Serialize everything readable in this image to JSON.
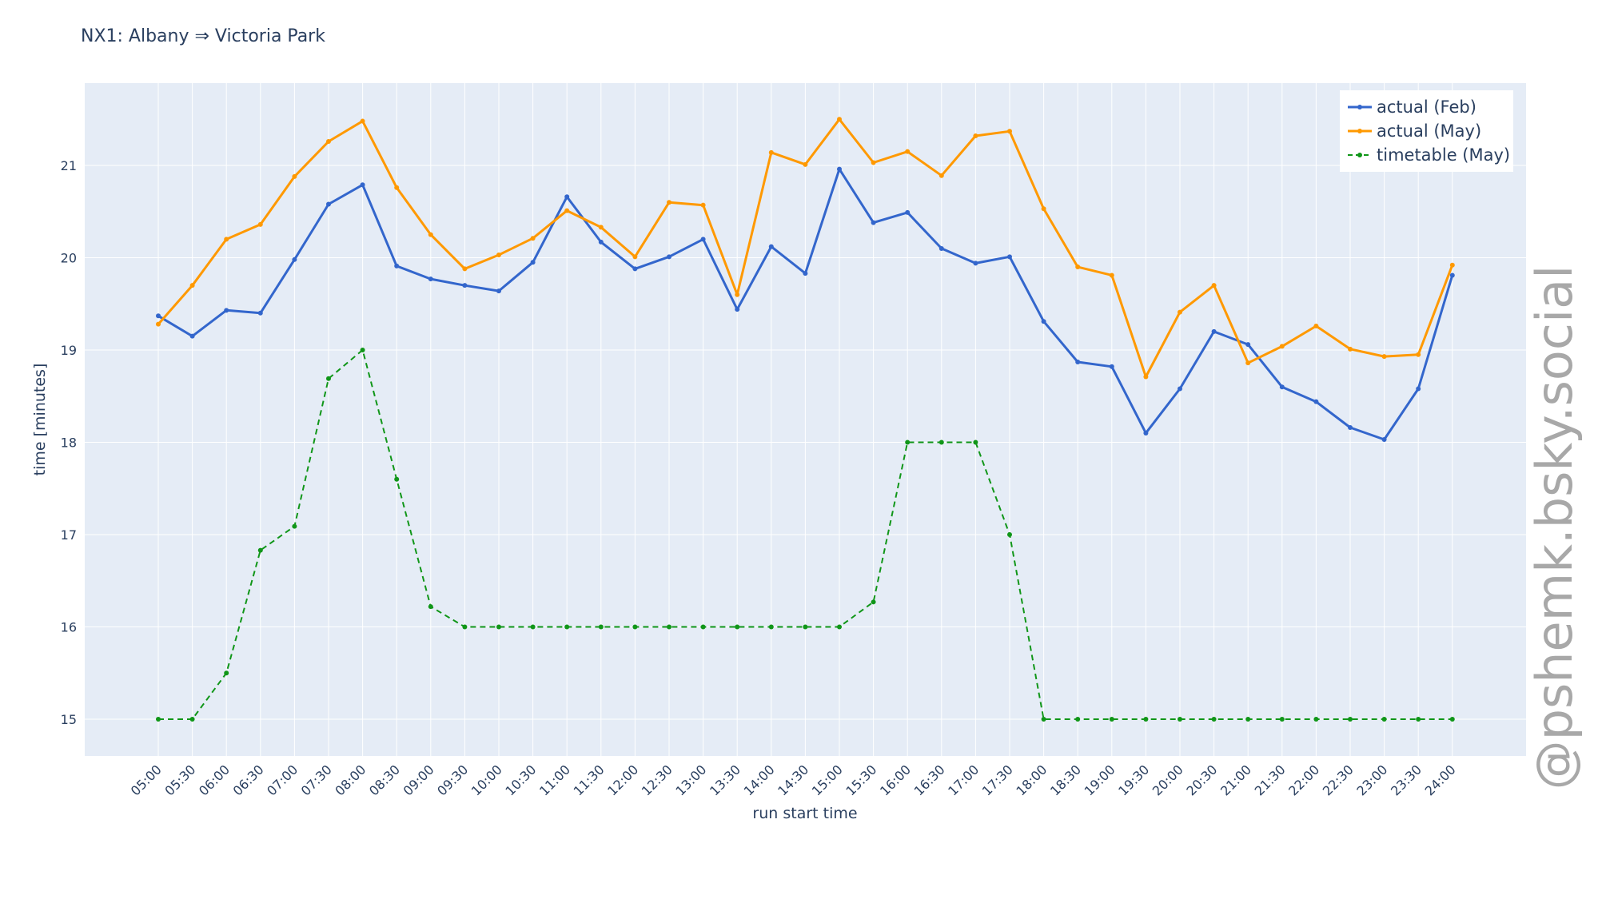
{
  "chart_data": {
    "type": "line",
    "title": "NX1: Albany ⇒ Victoria Park",
    "xlabel": "run start time",
    "ylabel": "time [minutes]",
    "ylim": [
      14.6,
      21.9
    ],
    "yticks": [
      15,
      16,
      17,
      18,
      19,
      20,
      21
    ],
    "grid": true,
    "legend_position": "top-right",
    "x": [
      "05:00",
      "05:30",
      "06:00",
      "06:30",
      "07:00",
      "07:30",
      "08:00",
      "08:30",
      "09:00",
      "09:30",
      "10:00",
      "10:30",
      "11:00",
      "11:30",
      "12:00",
      "12:30",
      "13:00",
      "13:30",
      "14:00",
      "14:30",
      "15:00",
      "15:30",
      "16:00",
      "16:30",
      "17:00",
      "17:30",
      "18:00",
      "18:30",
      "19:00",
      "19:30",
      "20:00",
      "20:30",
      "21:00",
      "21:30",
      "22:00",
      "22:30",
      "23:00",
      "23:30",
      "24:00"
    ],
    "series": [
      {
        "name": "actual (Feb)",
        "color": "#3366cc",
        "dash": "solid",
        "values": [
          19.37,
          19.15,
          19.43,
          19.4,
          19.98,
          20.58,
          20.79,
          19.91,
          19.77,
          19.7,
          19.64,
          19.95,
          20.66,
          20.17,
          19.88,
          20.01,
          20.2,
          19.44,
          20.12,
          19.83,
          20.96,
          20.38,
          20.49,
          20.1,
          19.94,
          20.01,
          19.31,
          18.87,
          18.82,
          18.1,
          18.58,
          19.2,
          19.06,
          18.6,
          18.44,
          18.16,
          18.03,
          18.58,
          19.81
        ]
      },
      {
        "name": "actual (May)",
        "color": "#ff9900",
        "dash": "solid",
        "values": [
          19.28,
          19.7,
          20.2,
          20.36,
          20.88,
          21.26,
          21.48,
          20.76,
          20.25,
          19.88,
          20.03,
          20.21,
          20.51,
          20.33,
          20.01,
          20.6,
          20.57,
          19.6,
          21.14,
          21.01,
          21.5,
          21.03,
          21.15,
          20.89,
          21.32,
          21.37,
          20.53,
          19.9,
          19.81,
          18.71,
          19.41,
          19.7,
          18.86,
          19.04,
          19.26,
          19.01,
          18.93,
          18.95,
          19.92
        ]
      },
      {
        "name": "timetable (May)",
        "color": "#109618",
        "dash": "dashed",
        "values": [
          15,
          15,
          15.5,
          16.83,
          17.09,
          18.69,
          19,
          17.6,
          16.22,
          16,
          16,
          16,
          16,
          16,
          16,
          16,
          16,
          16,
          16,
          16,
          16,
          16.27,
          18,
          18,
          18,
          17,
          15,
          15,
          15,
          15,
          15,
          15,
          15,
          15,
          15,
          15,
          15,
          15,
          15
        ]
      }
    ]
  },
  "watermark": "@pshemk.bsky.social"
}
